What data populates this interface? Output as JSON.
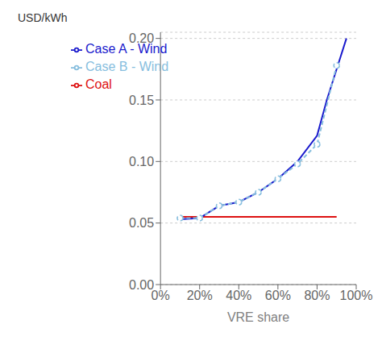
{
  "chart_data": {
    "type": "line",
    "xlabel": "VRE share",
    "ylabel": "USD/kWh",
    "xlim": [
      0.0,
      1.0
    ],
    "ylim": [
      0.0,
      0.205
    ],
    "xticks": [
      {
        "value": 0.0,
        "label": "0%"
      },
      {
        "value": 0.2,
        "label": "20%"
      },
      {
        "value": 0.4,
        "label": "40%"
      },
      {
        "value": 0.6,
        "label": "60%"
      },
      {
        "value": 0.8,
        "label": "80%"
      },
      {
        "value": 1.0,
        "label": "100%"
      }
    ],
    "yticks": [
      {
        "value": 0.0,
        "label": "0.00"
      },
      {
        "value": 0.05,
        "label": "0.05"
      },
      {
        "value": 0.1,
        "label": "0.10"
      },
      {
        "value": 0.15,
        "label": "0.15"
      },
      {
        "value": 0.2,
        "label": "0.20"
      }
    ],
    "grid": "y",
    "legend": "upper left",
    "series": [
      {
        "name": "Coal",
        "color": "#dd1111",
        "line_style": "solid",
        "marker": "none",
        "x": [
          0.1,
          0.9
        ],
        "values": [
          0.055,
          0.055
        ]
      },
      {
        "name": "Case A - Wind",
        "color": "#1a1acd",
        "line_style": "solid",
        "marker": "none",
        "x": [
          0.1,
          0.2,
          0.3,
          0.4,
          0.5,
          0.6,
          0.7,
          0.8,
          0.85,
          0.9,
          0.95
        ],
        "values": [
          0.053,
          0.054,
          0.064,
          0.067,
          0.075,
          0.086,
          0.1,
          0.121,
          0.15,
          0.175,
          0.2
        ]
      },
      {
        "name": "Case B - Wind",
        "color": "#87bede",
        "line_style": "dashed",
        "marker": "circle",
        "x": [
          0.1,
          0.2,
          0.3,
          0.4,
          0.5,
          0.6,
          0.7,
          0.8,
          0.9
        ],
        "values": [
          0.054,
          0.054,
          0.064,
          0.067,
          0.075,
          0.086,
          0.098,
          0.114,
          0.178
        ]
      }
    ]
  }
}
